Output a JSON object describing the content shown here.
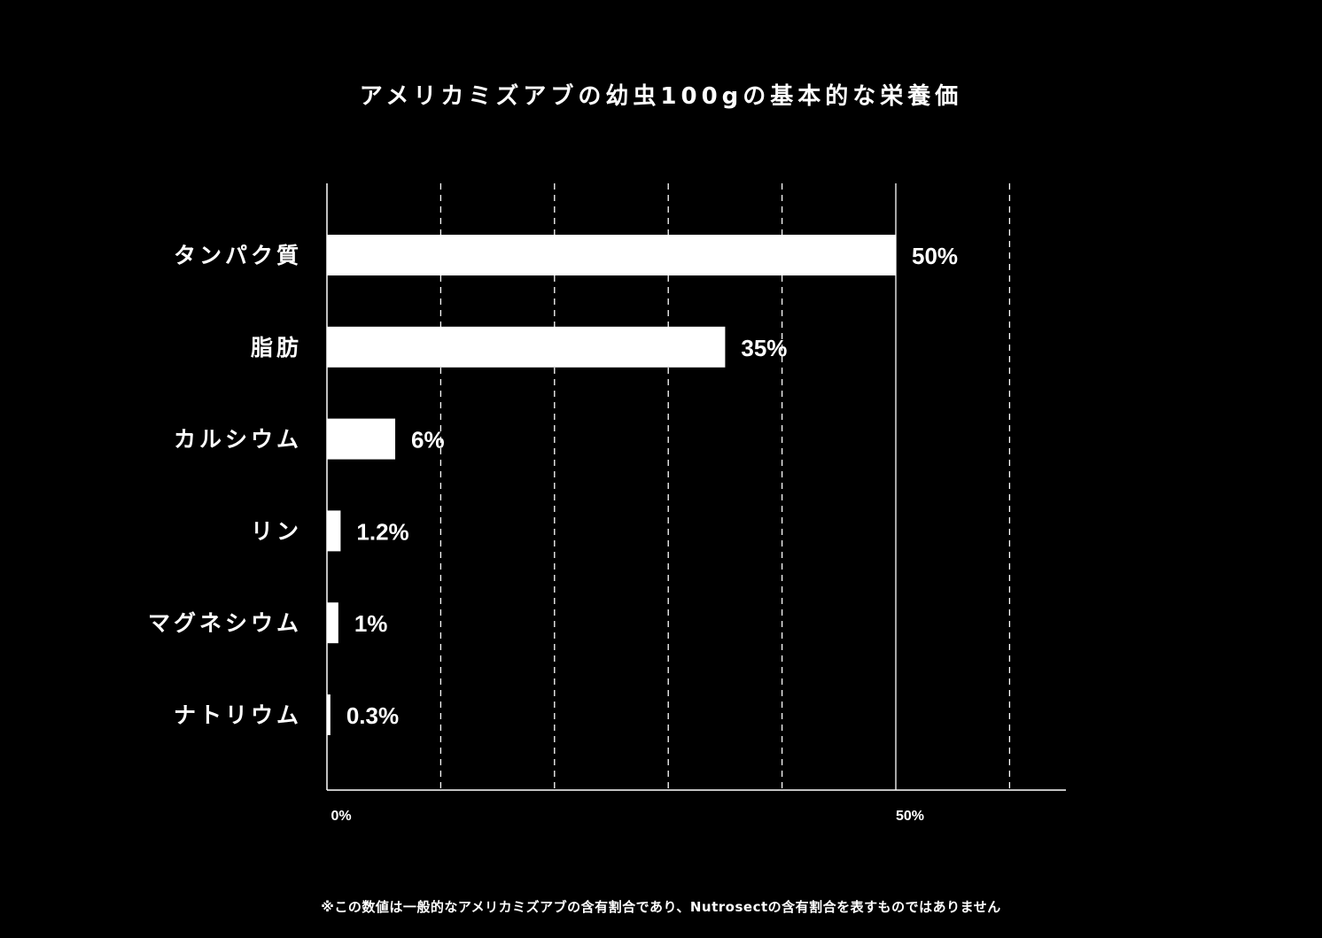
{
  "chart_data": {
    "type": "bar",
    "orientation": "horizontal",
    "title": "アメリカミズアブの幼虫100gの基本的な栄養価",
    "categories": [
      "タンパク質",
      "脂肪",
      "カルシウム",
      "リン",
      "マグネシウム",
      "ナトリウム"
    ],
    "values": [
      50,
      35,
      6,
      1.2,
      1,
      0.3
    ],
    "value_labels": [
      "50%",
      "35%",
      "6%",
      "1.2%",
      "1%",
      "0.3%"
    ],
    "unit": "%",
    "xlim": [
      0,
      65
    ],
    "ticks": [
      {
        "value": 0,
        "label": "0%"
      },
      {
        "value": 50,
        "label": "50%"
      }
    ],
    "gridlines": [
      {
        "value": 10,
        "style": "dashed"
      },
      {
        "value": 20,
        "style": "dashed"
      },
      {
        "value": 30,
        "style": "dashed"
      },
      {
        "value": 40,
        "style": "dashed"
      },
      {
        "value": 50,
        "style": "solid"
      },
      {
        "value": 60,
        "style": "dashed"
      }
    ],
    "grid": true,
    "legend": "none",
    "colors": {
      "background": "#000000",
      "bar": "#ffffff",
      "text": "#ffffff",
      "grid": "#ffffff"
    }
  },
  "footnote": "※この数値は一般的なアメリカミズアブの含有割合であり、Nutrosectの含有割合を表すものではありません"
}
